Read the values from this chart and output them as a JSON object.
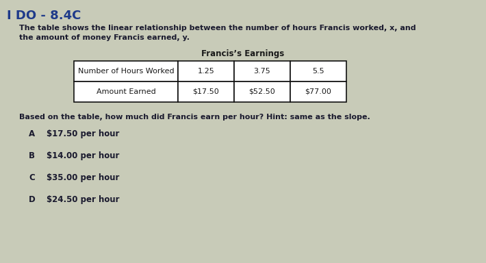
{
  "title_text": "I DO - 8.4C",
  "title_color": "#1e3a8a",
  "title_fontsize": 13,
  "description_line1": "The table shows the linear relationship between the number of hours Francis worked, x, and",
  "description_line2": "the amount of money Francis earned, y.",
  "desc_fontsize": 8.0,
  "desc_color": "#1a1a2e",
  "table_title": "Francis’s Earnings",
  "table_title_fontsize": 8.5,
  "table_col0_header": "Number of Hours Worked",
  "table_col0_row2": "Amount Earned",
  "table_data_row1": [
    "1.25",
    "3.75",
    "5.5"
  ],
  "table_data_row2": [
    "$17.50",
    "$52.50",
    "$77.00"
  ],
  "table_text_color": "#1a1a1a",
  "table_fontsize": 8.0,
  "question": "Based on the table, how much did Francis earn per hour? Hint: same as the slope.",
  "question_fontsize": 8.0,
  "question_color": "#1a1a2e",
  "choices": [
    "A",
    "B",
    "C",
    "D"
  ],
  "choice_texts": [
    "$17.50 per hour",
    "$14.00 per hour",
    "$35.00 per hour",
    "$24.50 per hour"
  ],
  "choice_fontsize": 8.5,
  "choice_color": "#1a1a2e",
  "bg_color": "#c8cbb8",
  "table_border_color": "#111111",
  "white": "#ffffff"
}
